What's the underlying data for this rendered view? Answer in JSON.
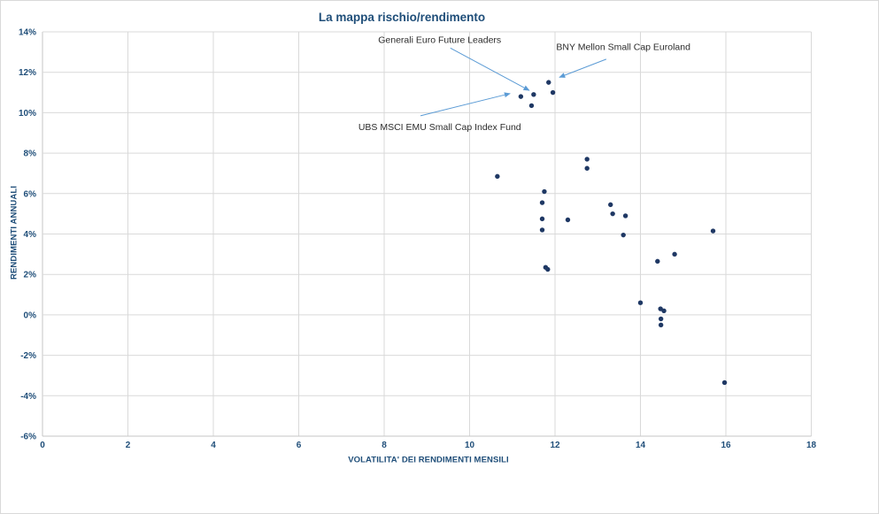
{
  "chart_data": {
    "type": "scatter",
    "title": "La mappa rischio/rendimento",
    "xlabel": "VOLATILITA' DEI RENDIMENTI MENSILI",
    "ylabel": "RENDIMENTI ANNUALI",
    "xlim": [
      0,
      18
    ],
    "ylim": [
      -6,
      14
    ],
    "xticks": [
      0,
      2,
      4,
      6,
      8,
      10,
      12,
      14,
      16,
      18
    ],
    "yticks": [
      -6,
      -4,
      -2,
      0,
      2,
      4,
      6,
      8,
      10,
      12,
      14
    ],
    "ytick_suffix": "%",
    "grid": true,
    "legend_position": "none",
    "series": [
      {
        "name": "Fondi",
        "points": [
          {
            "x": 11.2,
            "y": 10.8,
            "label": "UBS MSCI EMU  Small Cap Index Fund"
          },
          {
            "x": 11.5,
            "y": 10.9,
            "label": "Generali Euro Future Leaders"
          },
          {
            "x": 11.85,
            "y": 11.5,
            "label": "BNY Mellon Small Cap Euroland"
          },
          {
            "x": 11.95,
            "y": 11.0
          },
          {
            "x": 11.45,
            "y": 10.35
          },
          {
            "x": 10.65,
            "y": 6.85
          },
          {
            "x": 12.75,
            "y": 7.7
          },
          {
            "x": 12.75,
            "y": 7.25
          },
          {
            "x": 11.75,
            "y": 6.1
          },
          {
            "x": 11.7,
            "y": 5.55
          },
          {
            "x": 11.7,
            "y": 4.75
          },
          {
            "x": 11.7,
            "y": 4.2
          },
          {
            "x": 12.3,
            "y": 4.7
          },
          {
            "x": 13.3,
            "y": 5.45
          },
          {
            "x": 13.35,
            "y": 5.0
          },
          {
            "x": 13.65,
            "y": 4.9
          },
          {
            "x": 13.6,
            "y": 3.95
          },
          {
            "x": 11.78,
            "y": 2.35
          },
          {
            "x": 11.83,
            "y": 2.25
          },
          {
            "x": 15.7,
            "y": 4.15
          },
          {
            "x": 14.8,
            "y": 3.0
          },
          {
            "x": 14.4,
            "y": 2.65
          },
          {
            "x": 14.0,
            "y": 0.6
          },
          {
            "x": 14.47,
            "y": 0.3
          },
          {
            "x": 14.55,
            "y": 0.2
          },
          {
            "x": 14.48,
            "y": -0.2
          },
          {
            "x": 14.48,
            "y": -0.5
          },
          {
            "x": 15.97,
            "y": -3.35
          }
        ]
      }
    ],
    "annotations": [
      {
        "text": "Generali Euro Future Leaders",
        "text_anchor": {
          "x": 9.3,
          "y": 13.6
        },
        "arrow": {
          "from": {
            "x": 9.55,
            "y": 13.2
          },
          "to": {
            "x": 11.4,
            "y": 11.1
          }
        }
      },
      {
        "text": "BNY Mellon Small Cap Euroland",
        "text_anchor": {
          "x": 13.6,
          "y": 13.25
        },
        "arrow": {
          "from": {
            "x": 13.2,
            "y": 12.65
          },
          "to": {
            "x": 12.1,
            "y": 11.75
          }
        }
      },
      {
        "text": "UBS MSCI EMU  Small Cap Index Fund",
        "text_anchor": {
          "x": 9.3,
          "y": 9.3
        },
        "arrow": {
          "from": {
            "x": 8.85,
            "y": 9.85
          },
          "to": {
            "x": 10.95,
            "y": 10.95
          }
        }
      }
    ]
  },
  "colors": {
    "marker": "#1f3864",
    "arrow": "#5b9bd5",
    "gridline": "#d9d9d9",
    "axis_line": "#c6c6c6",
    "title_text": "#1f4e79",
    "tick_text": "#1f4e79",
    "annotation_text": "#2b2b2b",
    "background": "#ffffff",
    "chart_border": "#d9d9d9"
  }
}
